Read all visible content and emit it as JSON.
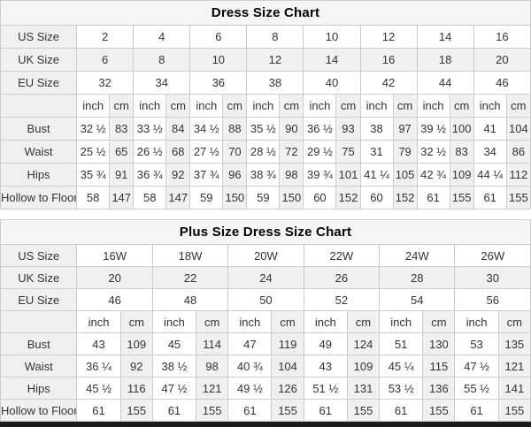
{
  "colors": {
    "shaded_cell": "#f0f0f0",
    "title_bg": "#f5f5f5",
    "border": "#cccccc",
    "text": "#333333",
    "title_text": "#000000",
    "bottom_bar": "#1c1c1c"
  },
  "tables": [
    {
      "title": "Dress Size Chart",
      "size_rows": [
        {
          "label": "US Size",
          "values": [
            "2",
            "4",
            "6",
            "8",
            "10",
            "12",
            "14",
            "16"
          ]
        },
        {
          "label": "UK Size",
          "values": [
            "6",
            "8",
            "10",
            "12",
            "14",
            "16",
            "18",
            "20"
          ]
        },
        {
          "label": "EU Size",
          "values": [
            "32",
            "34",
            "36",
            "38",
            "40",
            "42",
            "44",
            "46"
          ]
        }
      ],
      "unit_labels": {
        "inch": "inch",
        "cm": "cm"
      },
      "measurement_rows": [
        {
          "label": "Bust",
          "inch": [
            "32 ½",
            "33 ½",
            "34 ½",
            "35 ½",
            "36 ½",
            "38",
            "39 ½",
            "41"
          ],
          "cm": [
            "83",
            "84",
            "88",
            "90",
            "93",
            "97",
            "100",
            "104"
          ]
        },
        {
          "label": "Waist",
          "inch": [
            "25 ½",
            "26 ½",
            "27 ½",
            "28 ½",
            "29 ½",
            "31",
            "32 ½",
            "34"
          ],
          "cm": [
            "65",
            "68",
            "70",
            "72",
            "75",
            "79",
            "83",
            "86"
          ]
        },
        {
          "label": "Hips",
          "inch": [
            "35 ¾",
            "36 ¾",
            "37 ¾",
            "38 ¾",
            "39 ¾",
            "41 ¼",
            "42 ¾",
            "44 ¼"
          ],
          "cm": [
            "91",
            "92",
            "96",
            "98",
            "101",
            "105",
            "109",
            "112"
          ]
        },
        {
          "label": "Hollow to Floor",
          "inch": [
            "58",
            "58",
            "59",
            "59",
            "60",
            "60",
            "61",
            "61"
          ],
          "cm": [
            "147",
            "147",
            "150",
            "150",
            "152",
            "152",
            "155",
            "155"
          ]
        }
      ]
    },
    {
      "title": "Plus Size Dress Size Chart",
      "size_rows": [
        {
          "label": "US Size",
          "values": [
            "16W",
            "18W",
            "20W",
            "22W",
            "24W",
            "26W"
          ]
        },
        {
          "label": "UK Size",
          "values": [
            "20",
            "22",
            "24",
            "26",
            "28",
            "30"
          ]
        },
        {
          "label": "EU Size",
          "values": [
            "46",
            "48",
            "50",
            "52",
            "54",
            "56"
          ]
        }
      ],
      "unit_labels": {
        "inch": "inch",
        "cm": "cm"
      },
      "measurement_rows": [
        {
          "label": "Bust",
          "inch": [
            "43",
            "45",
            "47",
            "49",
            "51",
            "53"
          ],
          "cm": [
            "109",
            "114",
            "119",
            "124",
            "130",
            "135"
          ]
        },
        {
          "label": "Waist",
          "inch": [
            "36 ¼",
            "38 ½",
            "40 ¾",
            "43",
            "45 ¼",
            "47 ½"
          ],
          "cm": [
            "92",
            "98",
            "104",
            "109",
            "115",
            "121"
          ]
        },
        {
          "label": "Hips",
          "inch": [
            "45 ½",
            "47 ½",
            "49 ½",
            "51 ½",
            "53 ½",
            "55 ½"
          ],
          "cm": [
            "116",
            "121",
            "126",
            "131",
            "136",
            "141"
          ]
        },
        {
          "label": "Hollow to Floor",
          "inch": [
            "61",
            "61",
            "61",
            "61",
            "61",
            "61"
          ],
          "cm": [
            "155",
            "155",
            "155",
            "155",
            "155",
            "155"
          ]
        }
      ]
    }
  ]
}
